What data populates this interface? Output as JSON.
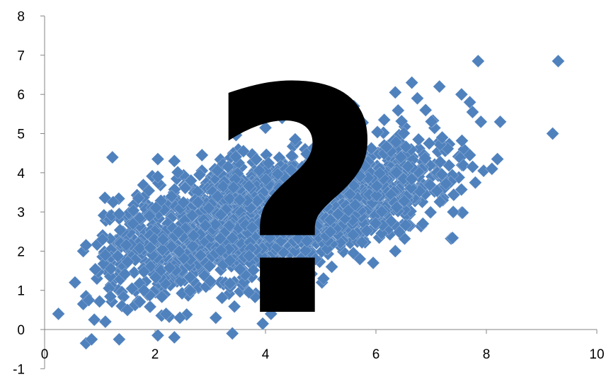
{
  "chart_data": {
    "type": "scatter",
    "title": "",
    "xlabel": "",
    "ylabel": "",
    "xlim": [
      0,
      10
    ],
    "ylim": [
      -1,
      8
    ],
    "x_ticks": [
      "0",
      "2",
      "4",
      "6",
      "8",
      "10"
    ],
    "y_ticks": [
      "-1",
      "0",
      "1",
      "2",
      "3",
      "4",
      "5",
      "6",
      "7",
      "8"
    ],
    "grid": false,
    "legend": "none",
    "marker": "diamond",
    "marker_color": "#4F81BD",
    "overlay_text": "?",
    "series": [
      {
        "points": [
          [
            0.25,
            0.4
          ],
          [
            0.55,
            1.2
          ],
          [
            0.7,
            0.65
          ],
          [
            0.75,
            0.85
          ],
          [
            0.8,
            0.75
          ],
          [
            0.75,
            -0.35
          ],
          [
            0.85,
            -0.25
          ],
          [
            0.7,
            2.0
          ],
          [
            0.75,
            2.15
          ],
          [
            0.9,
            0.25
          ],
          [
            1.05,
            2.3
          ],
          [
            1.1,
            1.9
          ],
          [
            1.2,
            1.55
          ],
          [
            1.1,
            0.2
          ],
          [
            1.35,
            -0.25
          ],
          [
            1.35,
            2.95
          ],
          [
            1.4,
            0.6
          ],
          [
            1.5,
            0.5
          ],
          [
            1.6,
            2.7
          ],
          [
            1.7,
            3.35
          ],
          [
            1.9,
            2.9
          ],
          [
            2.05,
            3.9
          ],
          [
            2.05,
            4.35
          ],
          [
            2.35,
            4.3
          ],
          [
            2.05,
            -0.15
          ],
          [
            2.35,
            -0.2
          ],
          [
            2.2,
            0.4
          ],
          [
            2.3,
            3.4
          ],
          [
            2.45,
            0.3
          ],
          [
            2.65,
            3.8
          ],
          [
            2.85,
            4.45
          ],
          [
            3.1,
            0.3
          ],
          [
            3.4,
            -0.1
          ],
          [
            3.6,
            4.55
          ],
          [
            3.7,
            0.95
          ],
          [
            4.0,
            5.15
          ],
          [
            3.95,
            0.15
          ],
          [
            4.1,
            0.4
          ],
          [
            4.3,
            5.4
          ],
          [
            4.75,
            5.8
          ],
          [
            4.65,
            1.05
          ],
          [
            5.05,
            1.3
          ],
          [
            5.2,
            1.6
          ],
          [
            5.4,
            5.55
          ],
          [
            5.6,
            5.7
          ],
          [
            5.95,
            1.7
          ],
          [
            6.15,
            5.35
          ],
          [
            6.35,
            2.0
          ],
          [
            6.35,
            6.05
          ],
          [
            6.65,
            6.3
          ],
          [
            6.75,
            5.9
          ],
          [
            6.9,
            5.6
          ],
          [
            6.85,
            2.7
          ],
          [
            7.15,
            6.2
          ],
          [
            7.2,
            4.9
          ],
          [
            7.4,
            3.0
          ],
          [
            7.55,
            6.0
          ],
          [
            7.7,
            5.8
          ],
          [
            7.75,
            5.55
          ],
          [
            7.85,
            6.85
          ],
          [
            7.9,
            5.3
          ],
          [
            7.8,
            3.75
          ],
          [
            7.7,
            4.45
          ],
          [
            7.75,
            4.15
          ],
          [
            7.95,
            4.05
          ],
          [
            8.1,
            4.1
          ],
          [
            8.2,
            4.35
          ],
          [
            8.25,
            5.3
          ],
          [
            9.2,
            5.0
          ],
          [
            9.3,
            6.85
          ]
        ]
      }
    ]
  }
}
